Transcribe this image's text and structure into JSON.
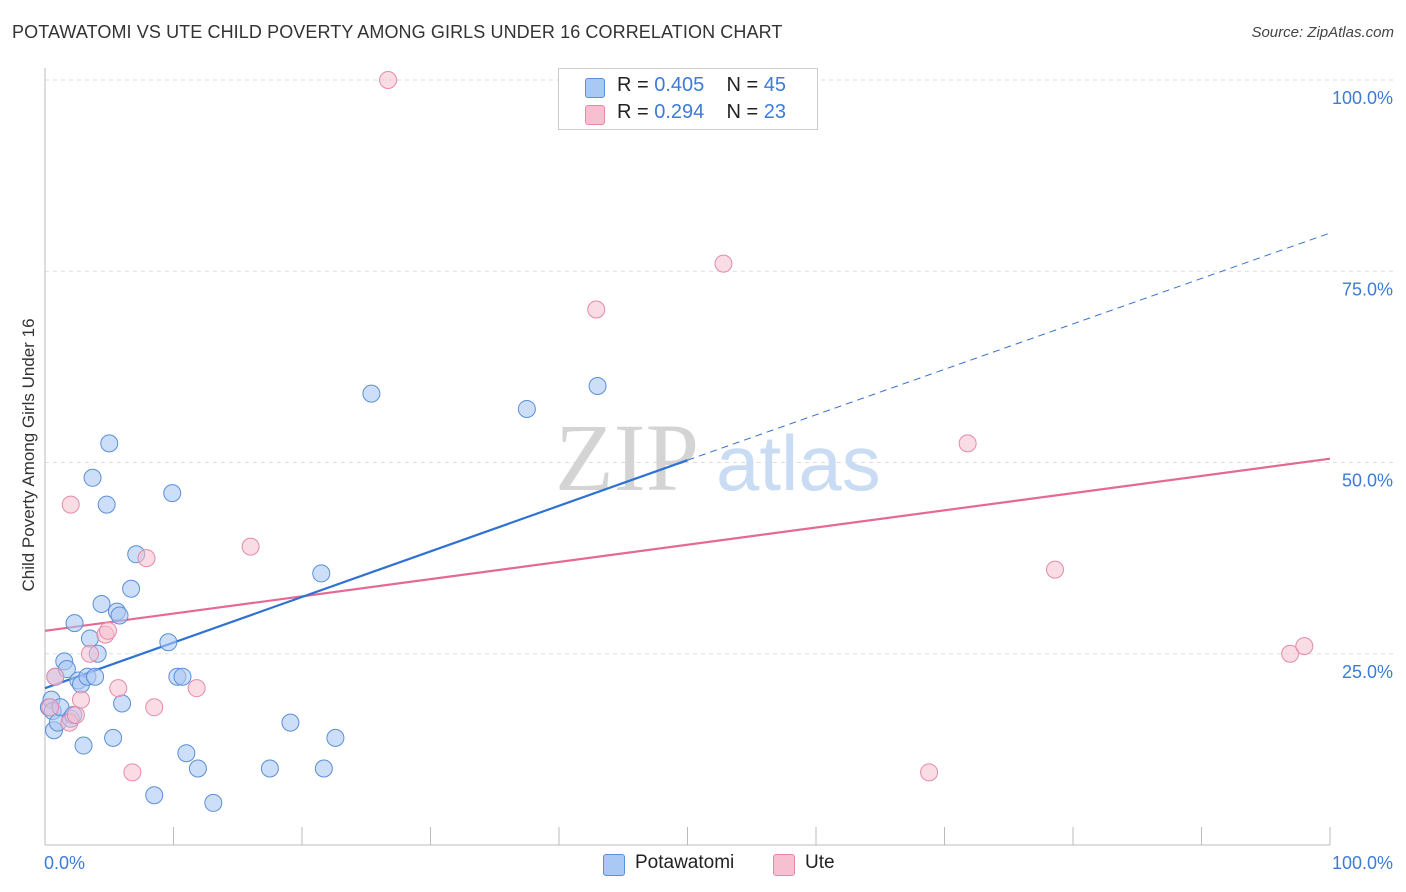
{
  "title": "POTAWATOMI VS UTE CHILD POVERTY AMONG GIRLS UNDER 16 CORRELATION CHART",
  "source": "Source: ZipAtlas.com",
  "watermark": {
    "zip": "ZIP",
    "atlas": "atlas"
  },
  "colors": {
    "potawatomi_fill": "#aac8f4",
    "potawatomi_stroke": "#5b8fd8",
    "potawatomi_line": "#2f72d2",
    "ute_fill": "#f6c0d0",
    "ute_stroke": "#e68aaa",
    "ute_line": "#e46a95",
    "tick": "#3d7bd8",
    "grid": "#dddddd"
  },
  "stats": [
    {
      "r_label": "R =",
      "r_value": "0.405",
      "n_label": "N =",
      "n_value": "45"
    },
    {
      "r_label": "R =",
      "r_value": "0.294",
      "n_label": "N =",
      "n_value": "23"
    }
  ],
  "legend": [
    "Potawatomi",
    "Ute"
  ],
  "chart_data": {
    "type": "scatter",
    "title": "POTAWATOMI VS UTE CHILD POVERTY AMONG GIRLS UNDER 16 CORRELATION CHART",
    "xlabel": "",
    "ylabel": "Child Poverty Among Girls Under 16",
    "xlim": [
      0,
      100
    ],
    "ylim": [
      0,
      100
    ],
    "x_tick_labels": [
      "0.0%",
      "100.0%"
    ],
    "y_tick_values": [
      25,
      50,
      75,
      100
    ],
    "y_tick_labels": [
      "25.0%",
      "50.0%",
      "75.0%",
      "100.0%"
    ],
    "grid": true,
    "legend_position": "bottom",
    "series": [
      {
        "name": "Potawatomi",
        "r": 0.405,
        "n": 45,
        "points": [
          [
            0.3,
            18.0
          ],
          [
            0.5,
            19.0
          ],
          [
            0.6,
            17.5
          ],
          [
            0.7,
            15.0
          ],
          [
            0.8,
            22.0
          ],
          [
            1.0,
            16.0
          ],
          [
            1.2,
            18.0
          ],
          [
            1.5,
            24.0
          ],
          [
            1.7,
            23.0
          ],
          [
            2.0,
            16.5
          ],
          [
            2.2,
            17.0
          ],
          [
            2.3,
            29.0
          ],
          [
            2.6,
            21.5
          ],
          [
            2.8,
            21.0
          ],
          [
            3.0,
            13.0
          ],
          [
            3.3,
            22.0
          ],
          [
            3.5,
            27.0
          ],
          [
            3.7,
            48.0
          ],
          [
            3.9,
            22.0
          ],
          [
            4.1,
            25.0
          ],
          [
            4.4,
            31.5
          ],
          [
            4.8,
            44.5
          ],
          [
            5.0,
            52.5
          ],
          [
            5.3,
            14.0
          ],
          [
            5.6,
            30.5
          ],
          [
            5.8,
            30.0
          ],
          [
            6.0,
            18.5
          ],
          [
            6.7,
            33.5
          ],
          [
            7.1,
            38.0
          ],
          [
            8.5,
            6.5
          ],
          [
            9.6,
            26.5
          ],
          [
            9.9,
            46.0
          ],
          [
            10.3,
            22.0
          ],
          [
            10.7,
            22.0
          ],
          [
            11.0,
            12.0
          ],
          [
            11.9,
            10.0
          ],
          [
            13.1,
            5.5
          ],
          [
            17.5,
            10.0
          ],
          [
            19.1,
            16.0
          ],
          [
            21.5,
            35.5
          ],
          [
            21.7,
            10.0
          ],
          [
            22.6,
            14.0
          ],
          [
            25.4,
            59.0
          ],
          [
            37.5,
            57.0
          ],
          [
            43.0,
            60.0
          ]
        ],
        "trend": {
          "x": [
            0,
            50
          ],
          "y": [
            20.5,
            50.3
          ],
          "dashed_x": [
            50,
            100
          ],
          "dashed_y": [
            50.3,
            80.0
          ]
        }
      },
      {
        "name": "Ute",
        "r": 0.294,
        "n": 23,
        "points": [
          [
            0.4,
            18.0
          ],
          [
            0.8,
            22.0
          ],
          [
            1.9,
            16.0
          ],
          [
            2.0,
            44.5
          ],
          [
            2.4,
            17.0
          ],
          [
            2.8,
            19.0
          ],
          [
            3.5,
            25.0
          ],
          [
            4.7,
            27.5
          ],
          [
            4.9,
            28.0
          ],
          [
            5.7,
            20.5
          ],
          [
            6.8,
            9.5
          ],
          [
            7.9,
            37.5
          ],
          [
            8.5,
            18.0
          ],
          [
            11.8,
            20.5
          ],
          [
            16.0,
            39.0
          ],
          [
            26.7,
            100.0
          ],
          [
            42.9,
            70.0
          ],
          [
            52.8,
            76.0
          ],
          [
            68.8,
            9.5
          ],
          [
            71.8,
            52.5
          ],
          [
            78.6,
            36.0
          ],
          [
            96.9,
            25.0
          ],
          [
            98.0,
            26.0
          ]
        ],
        "trend": {
          "x": [
            0,
            100
          ],
          "y": [
            28.0,
            50.5
          ]
        }
      }
    ]
  }
}
